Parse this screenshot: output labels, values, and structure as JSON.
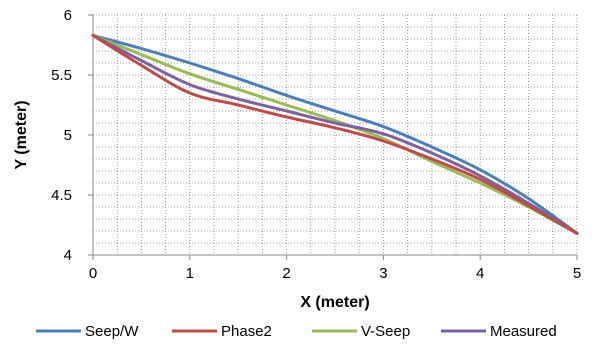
{
  "chart_data": {
    "type": "line",
    "title": "",
    "xlabel": "X (meter)",
    "ylabel": "Y (meter)",
    "xlim": [
      0,
      5
    ],
    "ylim": [
      4,
      6
    ],
    "x_ticks": [
      "0",
      "1",
      "2",
      "3",
      "4",
      "5"
    ],
    "y_ticks": [
      "4",
      "4.5",
      "5",
      "5.5",
      "6"
    ],
    "grid": true,
    "legend_position": "bottom",
    "series": [
      {
        "name": "Seep/W",
        "color": "#4a7ebb",
        "x": [
          0,
          0.5,
          1,
          1.5,
          2,
          2.5,
          3,
          3.5,
          4,
          4.5,
          5
        ],
        "y": [
          5.83,
          5.72,
          5.6,
          5.47,
          5.33,
          5.2,
          5.07,
          4.9,
          4.71,
          4.47,
          4.18
        ]
      },
      {
        "name": "Phase2",
        "color": "#be4b48",
        "x": [
          0,
          0.5,
          1,
          1.5,
          2,
          2.5,
          3,
          3.5,
          4,
          4.5,
          5
        ],
        "y": [
          5.83,
          5.58,
          5.35,
          5.25,
          5.15,
          5.06,
          4.95,
          4.8,
          4.63,
          4.41,
          4.18
        ]
      },
      {
        "name": "V-Seep",
        "color": "#98b954",
        "x": [
          0,
          0.5,
          1,
          1.5,
          2,
          2.5,
          3,
          3.5,
          4,
          4.5,
          5
        ],
        "y": [
          5.83,
          5.67,
          5.51,
          5.38,
          5.25,
          5.12,
          4.97,
          4.78,
          4.6,
          4.4,
          4.18
        ]
      },
      {
        "name": "Measured",
        "color": "#7d60a0",
        "x": [
          0,
          0.5,
          1,
          1.5,
          2,
          2.5,
          3,
          3.5,
          4,
          4.5,
          5
        ],
        "y": [
          5.83,
          5.62,
          5.42,
          5.3,
          5.2,
          5.1,
          5.01,
          4.85,
          4.66,
          4.43,
          4.18
        ]
      }
    ]
  }
}
